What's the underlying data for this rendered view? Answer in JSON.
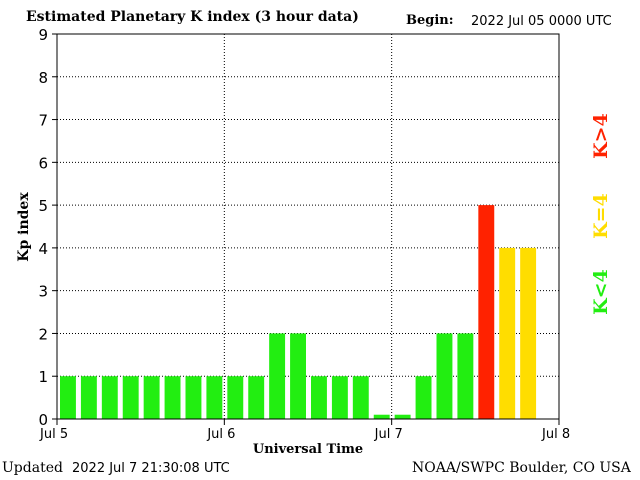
{
  "header": {
    "title": "Estimated Planetary K index (3 hour data)",
    "begin_label": "Begin:",
    "begin_value": "2022 Jul 05 0000 UTC"
  },
  "footer": {
    "updated_label": "Updated",
    "updated_value": "2022 Jul  7 21:30:08 UTC",
    "credit": "NOAA/SWPC Boulder, CO USA"
  },
  "legend": {
    "low": "K<4",
    "mid": "K=4",
    "high": "K>4",
    "colors": {
      "low": "#22ee11",
      "mid": "#ffdd00",
      "high": "#ff2200"
    }
  },
  "chart_data": {
    "type": "bar",
    "title": "Estimated Planetary K index (3 hour data)",
    "xlabel": "Universal Time",
    "ylabel": "Kp index",
    "ylim": [
      0,
      9
    ],
    "yticks": [
      0,
      1,
      2,
      3,
      4,
      5,
      6,
      7,
      8,
      9
    ],
    "xticks": [
      "Jul 5",
      "Jul 6",
      "Jul 7",
      "Jul 8"
    ],
    "grid": true,
    "interval_hours": 3,
    "values": [
      1,
      1,
      1,
      1,
      1,
      1,
      1,
      1,
      1,
      1,
      2,
      2,
      1,
      1,
      1,
      0.1,
      0.1,
      1,
      2,
      2,
      5,
      4,
      4
    ]
  }
}
